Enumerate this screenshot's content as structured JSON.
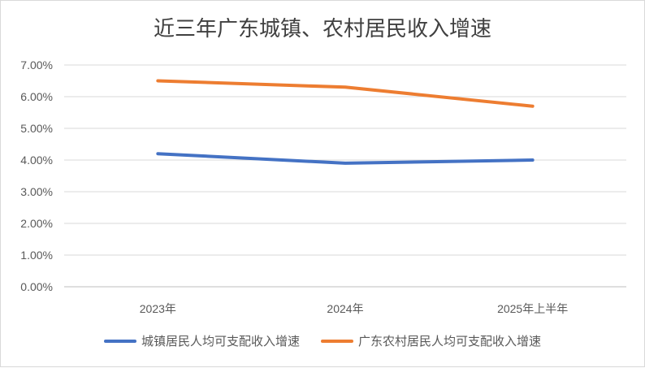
{
  "chart_data": {
    "type": "line",
    "title": "近三年广东城镇、农村居民收入增速",
    "categories": [
      "2023年",
      "2024年",
      "2025年上半年"
    ],
    "series": [
      {
        "name": "城镇居民人均可支配收入增速",
        "values": [
          4.2,
          3.9,
          4.0
        ],
        "color": "#4472c4"
      },
      {
        "name": "广东农村居民人均可支配收入增速",
        "values": [
          6.5,
          6.3,
          5.7
        ],
        "color": "#ed7d31"
      }
    ],
    "ylim": [
      0,
      7
    ],
    "y_ticks": [
      "0.00%",
      "1.00%",
      "2.00%",
      "3.00%",
      "4.00%",
      "5.00%",
      "6.00%",
      "7.00%"
    ],
    "grid": true,
    "legend_position": "bottom"
  }
}
